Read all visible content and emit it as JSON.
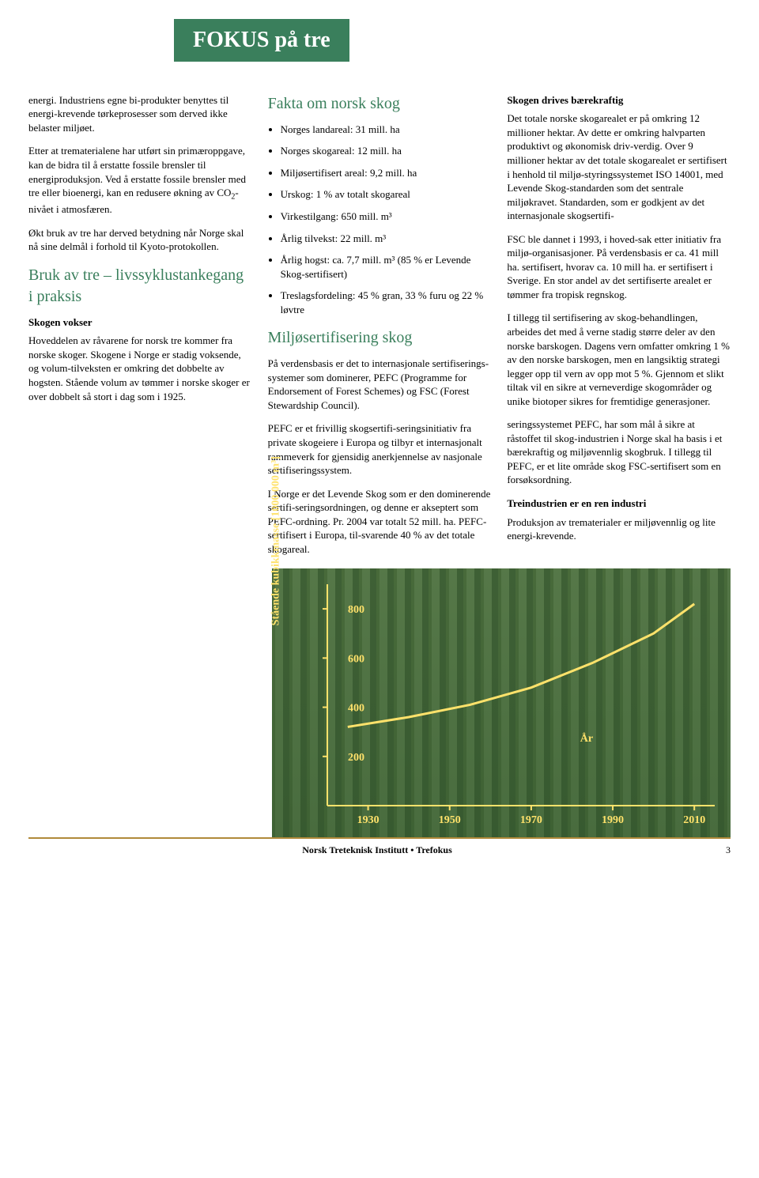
{
  "header": {
    "title": "FOKUS på tre"
  },
  "col1": {
    "p1": "energi. Industriens egne bi-produkter benyttes til energi-krevende tørkeprosesser som derved ikke belaster miljøet.",
    "p2a": "Etter at trematerialene har utført sin primæroppgave, kan de bidra til å erstatte fossile brensler til energiproduksjon. Ved å erstatte fossile brensler med tre eller bioenergi, kan en redusere økning av CO",
    "p2b": "-nivået i atmosfæren.",
    "p3": "Økt bruk av tre har derved betydning når Norge skal nå sine delmål i forhold til Kyoto-protokollen.",
    "h1": "Bruk av tre – livssyklustankegang i praksis",
    "sub1": "Skogen vokser",
    "p4": "Hoveddelen av råvarene for norsk tre kommer fra norske skoger. Skogene i Norge er stadig voksende, og volum-tilveksten er omkring det dobbelte av hogsten. Stående volum av tømmer i norske skoger er over dobbelt så stort i dag som i 1925.",
    "h2": "Fakta om norsk skog",
    "facts": [
      "Norges landareal: 31 mill. ha",
      "Norges skogareal: 12 mill. ha",
      "Miljøsertifisert areal: 9,2 mill. ha",
      "Urskog: 1 % av totalt skogareal",
      "Virkestilgang: 650 mill. m³",
      "Årlig tilvekst: 22 mill. m³",
      "Årlig hogst: ca. 7,7 mill. m³ (85 % er Levende Skog-sertifisert)",
      "Treslagsfordeling: 45 % gran, 33 % furu og 22 % løvtre"
    ]
  },
  "col2": {
    "h1": "Miljøsertifisering skog",
    "p1": "På verdensbasis er det to internasjonale sertifiserings-systemer som dominerer, PEFC (Programme for Endorsement of Forest Schemes) og FSC (Forest Stewardship Council).",
    "p2": "PEFC er et frivillig skogsertifi-seringsinitiativ fra private skogeiere i Europa og tilbyr et internasjonalt rammeverk for gjensidig anerkjennelse av nasjonale sertifiseringssystem.",
    "p3": "I Norge er det Levende Skog som er den dominerende sertifi-seringsordningen, og denne er akseptert som PEFC-ordning. Pr. 2004 var totalt 52 mill. ha. PEFC-sertifisert i Europa, til-svarende 40 % av det totale skogareal.",
    "sub2": "Skogen drives bærekraftig",
    "p4": "Det totale norske skogarealet er på omkring 12 millioner hektar. Av dette er omkring halvparten produktivt og økonomisk driv-verdig. Over 9 millioner hektar av det totale skogarealet er sertifisert i henhold til miljø-styringssystemet ISO 14001, med Levende Skog-standarden som det sentrale miljøkravet. Standarden, som er godkjent av det internasjonale skogsertifi-"
  },
  "col3": {
    "p1": "FSC ble dannet i 1993, i hoved-sak etter initiativ fra miljø-organisasjoner. På verdensbasis er ca. 41 mill ha. sertifisert, hvorav ca. 10 mill ha. er sertifisert i Sverige. En stor andel av det sertifiserte arealet er tømmer fra tropisk regnskog.",
    "p2": "I tillegg til sertifisering av skog-behandlingen, arbeides det med å verne stadig større deler av den norske barskogen. Dagens vern omfatter omkring 1 % av den norske barskogen, men en langsiktig strategi legger opp til vern av opp mot 5 %. Gjennom et slikt tiltak vil en sikre at verneverdige skogområder og unike biotoper sikres for fremtidige generasjoner.",
    "p3": "seringssystemet PEFC, har som mål å sikre at råstoffet til skog-industrien i Norge skal ha basis i et bærekraftig og miljøvennlig skogbruk. I tillegg til PEFC, er et lite område skog FSC-sertifisert som en forsøksordning.",
    "sub3": "Treindustrien er en ren industri",
    "p4": "Produksjon av trematerialer er miljøvennlig og lite energi-krevende."
  },
  "chart": {
    "type": "line",
    "ylabel": "Stående kubikkmasse [1000 000 m³]",
    "xlabel": "År",
    "ylim": [
      0,
      900
    ],
    "yticks": [
      200,
      400,
      600,
      800
    ],
    "xticks": [
      1930,
      1950,
      1970,
      1990,
      2010
    ],
    "line_color": "#ffe26b",
    "axis_color": "#ffe26b",
    "label_fontsize": 14,
    "points": [
      {
        "x": 1925,
        "y": 320
      },
      {
        "x": 1940,
        "y": 360
      },
      {
        "x": 1955,
        "y": 410
      },
      {
        "x": 1970,
        "y": 480
      },
      {
        "x": 1985,
        "y": 580
      },
      {
        "x": 2000,
        "y": 700
      },
      {
        "x": 2010,
        "y": 820
      }
    ]
  },
  "footer": {
    "center": "Norsk Treteknisk Institutt • Trefokus",
    "page": "3"
  },
  "colors": {
    "brand_green": "#3a7f5c",
    "chart_yellow": "#ffe26b",
    "rule": "#b08a3a"
  }
}
